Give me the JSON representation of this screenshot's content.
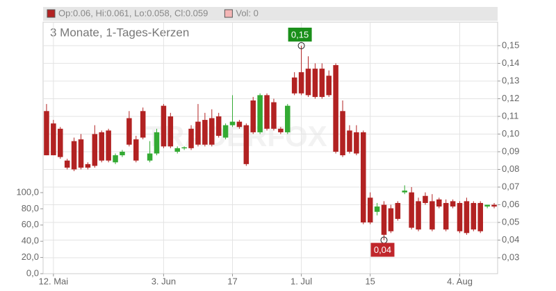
{
  "chart_data": {
    "type": "candlestick",
    "subtitle": "3 Monate, 1-Tages-Kerzen",
    "legend": [
      "Op:0.06, Hi:0.061, Lo:0.058, Cl:0.059",
      "Vol: 0"
    ],
    "legend_colors": [
      "#b22222",
      "#f4b6b6"
    ],
    "categories": [
      null,
      "12. Mai",
      null,
      null,
      null,
      null,
      null,
      null,
      null,
      null,
      null,
      null,
      null,
      null,
      null,
      null,
      null,
      "3. Jun",
      null,
      null,
      null,
      null,
      null,
      null,
      null,
      null,
      null,
      "17",
      null,
      null,
      null,
      null,
      null,
      null,
      null,
      null,
      null,
      "1. Jul",
      null,
      null,
      null,
      null,
      null,
      null,
      null,
      null,
      null,
      "15",
      null,
      null,
      null,
      null,
      null,
      null,
      null,
      null,
      null,
      null,
      null,
      null,
      "4. Aug",
      null,
      null,
      null,
      null,
      null
    ],
    "open": [
      0.113,
      0.106,
      0.103,
      0.085,
      0.096,
      0.097,
      0.083,
      0.1,
      0.101,
      0.102,
      0.084,
      0.088,
      0.109,
      0.097,
      0.113,
      0.085,
      0.089,
      0.116,
      0.11,
      0.09,
      0.092,
      0.103,
      0.107,
      0.108,
      0.109,
      0.11,
      0.098,
      0.105,
      0.107,
      0.105,
      0.119,
      0.101,
      0.122,
      0.118,
      0.103,
      0.101,
      0.132,
      0.135,
      0.137,
      0.137,
      0.137,
      0.133,
      0.139,
      0.113,
      0.102,
      0.101,
      0.101,
      0.064,
      0.056,
      0.06,
      0.058,
      0.061,
      0.067,
      0.067,
      0.062,
      0.065,
      0.062,
      0.063,
      0.061,
      0.062,
      0.061,
      0.062,
      0.061,
      0.061,
      0.059,
      0.06
    ],
    "high": [
      0.117,
      0.108,
      0.104,
      0.086,
      0.098,
      0.1,
      0.084,
      0.105,
      0.102,
      0.103,
      0.089,
      0.091,
      0.113,
      0.099,
      0.115,
      0.096,
      0.103,
      0.117,
      0.112,
      0.093,
      0.093,
      0.105,
      0.117,
      0.112,
      0.114,
      0.112,
      0.106,
      0.122,
      0.108,
      0.106,
      0.121,
      0.123,
      0.123,
      0.12,
      0.104,
      0.117,
      0.135,
      0.15,
      0.144,
      0.14,
      0.14,
      0.136,
      0.14,
      0.119,
      0.105,
      0.105,
      0.102,
      0.067,
      0.061,
      0.062,
      0.06,
      0.062,
      0.071,
      0.07,
      0.064,
      0.067,
      0.066,
      0.064,
      0.063,
      0.063,
      0.062,
      0.064,
      0.062,
      0.062,
      0.06,
      0.061
    ],
    "low": [
      0.088,
      0.088,
      0.086,
      0.08,
      0.079,
      0.08,
      0.08,
      0.081,
      0.084,
      0.084,
      0.083,
      0.087,
      0.093,
      0.084,
      0.097,
      0.084,
      0.088,
      0.092,
      0.092,
      0.089,
      0.091,
      0.091,
      0.093,
      0.093,
      0.093,
      0.098,
      0.097,
      0.104,
      0.103,
      0.082,
      0.1,
      0.1,
      0.102,
      0.102,
      0.1,
      0.1,
      0.122,
      0.122,
      0.121,
      0.12,
      0.12,
      0.121,
      0.089,
      0.087,
      0.089,
      0.088,
      0.049,
      0.049,
      0.054,
      0.04,
      0.044,
      0.051,
      0.066,
      0.046,
      0.045,
      0.06,
      0.045,
      0.058,
      0.045,
      0.058,
      0.044,
      0.043,
      0.045,
      0.044,
      0.058,
      0.058
    ],
    "close": [
      0.088,
      0.088,
      0.087,
      0.081,
      0.08,
      0.081,
      0.081,
      0.082,
      0.085,
      0.085,
      0.088,
      0.09,
      0.094,
      0.085,
      0.098,
      0.089,
      0.101,
      0.093,
      0.093,
      0.092,
      0.0925,
      0.092,
      0.094,
      0.094,
      0.094,
      0.099,
      0.105,
      0.107,
      0.104,
      0.083,
      0.101,
      0.122,
      0.103,
      0.103,
      0.101,
      0.116,
      0.123,
      0.123,
      0.122,
      0.121,
      0.121,
      0.122,
      0.09,
      0.088,
      0.09,
      0.089,
      0.05,
      0.05,
      0.059,
      0.043,
      0.045,
      0.052,
      0.068,
      0.047,
      0.046,
      0.061,
      0.046,
      0.059,
      0.046,
      0.059,
      0.045,
      0.044,
      0.046,
      0.045,
      0.06,
      0.059
    ],
    "up_color": "#33aa33",
    "down_color": "#b22222",
    "annotations": [
      {
        "text": "0,15",
        "value": 0.15,
        "color": "#1a8f1a"
      },
      {
        "text": "0,04",
        "value": 0.04,
        "color": "#c0262b"
      }
    ],
    "ylim": [
      0.021,
      0.1633
    ],
    "yticks": [
      {
        "value": 0.03,
        "label": "0,03"
      },
      {
        "value": 0.04,
        "label": "0,04"
      },
      {
        "value": 0.05,
        "label": "0,05"
      },
      {
        "value": 0.06,
        "label": "0,06"
      },
      {
        "value": 0.07,
        "label": "0,07"
      },
      {
        "value": 0.08,
        "label": "0,08"
      },
      {
        "value": 0.09,
        "label": "0,09"
      },
      {
        "value": 0.1,
        "label": "0,10"
      },
      {
        "value": 0.11,
        "label": "0,11"
      },
      {
        "value": 0.12,
        "label": "0,12"
      },
      {
        "value": 0.13,
        "label": "0,13"
      },
      {
        "value": 0.14,
        "label": "0,14"
      },
      {
        "value": 0.15,
        "label": "0,15"
      }
    ],
    "y2lim": [
      0,
      100
    ],
    "y2ticks": [
      {
        "value": 0,
        "label": "0,0"
      },
      {
        "value": 20,
        "label": "20,0"
      },
      {
        "value": 40,
        "label": "40,0"
      },
      {
        "value": 60,
        "label": "60,0"
      },
      {
        "value": 80,
        "label": "80,0"
      },
      {
        "value": 100,
        "label": "100,0"
      }
    ],
    "grid": true
  }
}
